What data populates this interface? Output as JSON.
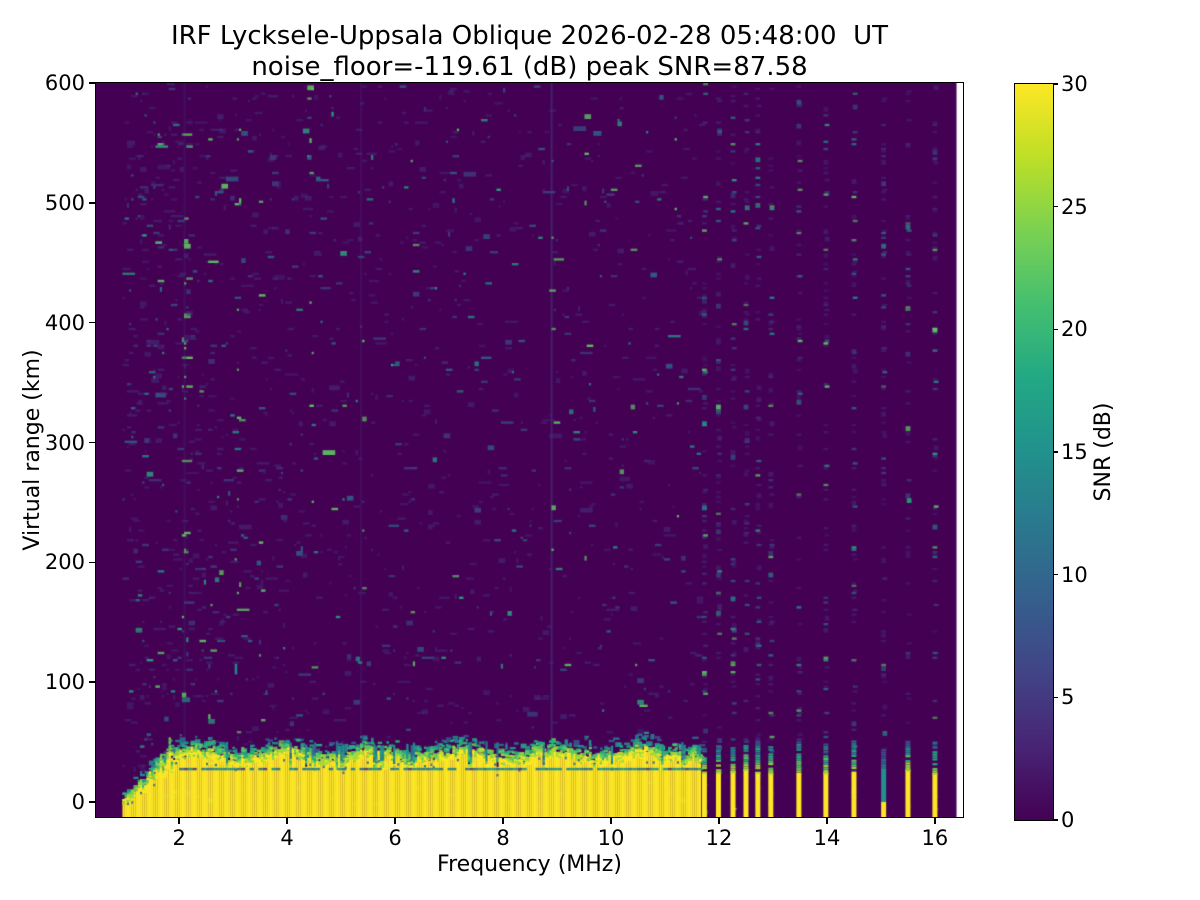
{
  "chart_data": {
    "type": "heatmap",
    "title_line1": "IRF Lycksele-Uppsala Oblique 2026-02-28 05:48:00  UT",
    "title_line2": "noise_floor=-119.61 (dB) peak SNR=87.58",
    "noise_floor_db": -119.61,
    "peak_snr_db": 87.58,
    "xlabel": "Frequency (MHz)",
    "ylabel": "Virtual range (km)",
    "xlim": [
      0.46,
      16.52
    ],
    "ylim": [
      -12.5,
      600
    ],
    "xticks": [
      2,
      4,
      6,
      8,
      10,
      12,
      14,
      16
    ],
    "yticks": [
      0,
      100,
      200,
      300,
      400,
      500,
      600
    ],
    "grid": false,
    "legend": false,
    "colorbar": {
      "label": "SNR (dB)",
      "min": 0,
      "max": 30,
      "ticks": [
        0,
        5,
        10,
        15,
        20,
        25,
        30
      ],
      "colormap": "viridis",
      "stops": [
        "#440154",
        "#482475",
        "#414487",
        "#355f8d",
        "#2a788e",
        "#21918c",
        "#22a884",
        "#44bf70",
        "#7ad151",
        "#bddf26",
        "#fde725"
      ]
    },
    "colors": {
      "figure_bg": "#ffffff",
      "background": "#440154",
      "band_yellow": "#fde725",
      "teal": "#21918c",
      "no_data": "#ffffff"
    },
    "data_freq_min": 0.95,
    "data_freq_max": 16.4,
    "sweep": {
      "f_start": 0.95,
      "f_end": 11.63,
      "band_onset_f": 1.9,
      "band_top_km_mean": 37,
      "band_speckle_top_km": 54,
      "teal_line_km": 28.5,
      "teal_line_f_start": 2.0
    },
    "stepped": {
      "yellow_top_km": 26,
      "cap_top_km": 47,
      "freqs": [
        {
          "f": 11.73
        },
        {
          "f": 11.99
        },
        {
          "f": 12.26
        },
        {
          "f": 12.5
        },
        {
          "f": 12.72
        },
        {
          "f": 12.96
        },
        {
          "f": 13.48
        },
        {
          "f": 13.98
        },
        {
          "f": 14.5
        },
        {
          "f": 15.05,
          "weak": true
        },
        {
          "f": 15.5
        },
        {
          "f": 16.0
        }
      ]
    },
    "noise": {
      "seed": 1337,
      "noise_palette": [
        {
          "c": "#46327e",
          "a": 0.55,
          "w": 0.66
        },
        {
          "c": "#3b528b",
          "a": 0.7,
          "w": 0.14
        },
        {
          "c": "#2c728e",
          "a": 0.78,
          "w": 0.09
        },
        {
          "c": "#21918c",
          "a": 0.88,
          "w": 0.062
        },
        {
          "c": "#27ad81",
          "a": 0.92,
          "w": 0.032
        },
        {
          "c": "#5ec962",
          "a": 0.95,
          "w": 0.016
        }
      ],
      "band_cap_palette": [
        "#fde725",
        "#9fda3a",
        "#5ec962",
        "#28ae80",
        "#21918c",
        "#2c728e",
        "#3b528b"
      ],
      "hot_columns": [
        {
          "f": 1.55,
          "w": 0.06,
          "boost": 1.6,
          "teal": 1.3
        },
        {
          "f": 2.1,
          "w": 0.06,
          "boost": 1.8,
          "teal": 1.5
        },
        {
          "f": 2.55,
          "w": 0.05,
          "boost": 1.5,
          "teal": 1.4
        },
        {
          "f": 3.07,
          "w": 0.06,
          "boost": 1.9,
          "teal": 2.2
        },
        {
          "f": 3.5,
          "w": 0.05,
          "boost": 1.4,
          "teal": 1.6
        },
        {
          "f": 4.42,
          "w": 0.05,
          "boost": 1.4,
          "teal": 1.8
        },
        {
          "f": 5.37,
          "w": 0.05,
          "boost": 1.3,
          "teal": 1.5
        },
        {
          "f": 6.3,
          "w": 0.05,
          "boost": 1.3,
          "teal": 1.6
        },
        {
          "f": 7.1,
          "w": 0.05,
          "boost": 1.2,
          "teal": 1.4
        },
        {
          "f": 8.9,
          "w": 0.05,
          "boost": 1.6,
          "teal": 1.8
        },
        {
          "f": 9.55,
          "w": 0.05,
          "boost": 1.3,
          "teal": 1.5
        },
        {
          "f": 10.4,
          "w": 0.05,
          "boost": 1.2,
          "teal": 1.4
        },
        {
          "f": 11.2,
          "w": 0.05,
          "boost": 1.4,
          "teal": 1.6
        }
      ],
      "vlines": [
        {
          "f": 8.9,
          "color": "#3b528b",
          "alpha": 0.45
        },
        {
          "f": 5.37,
          "color": "#46327e",
          "alpha": 0.3
        },
        {
          "f": 2.1,
          "color": "#46327e",
          "alpha": 0.28
        }
      ]
    }
  }
}
